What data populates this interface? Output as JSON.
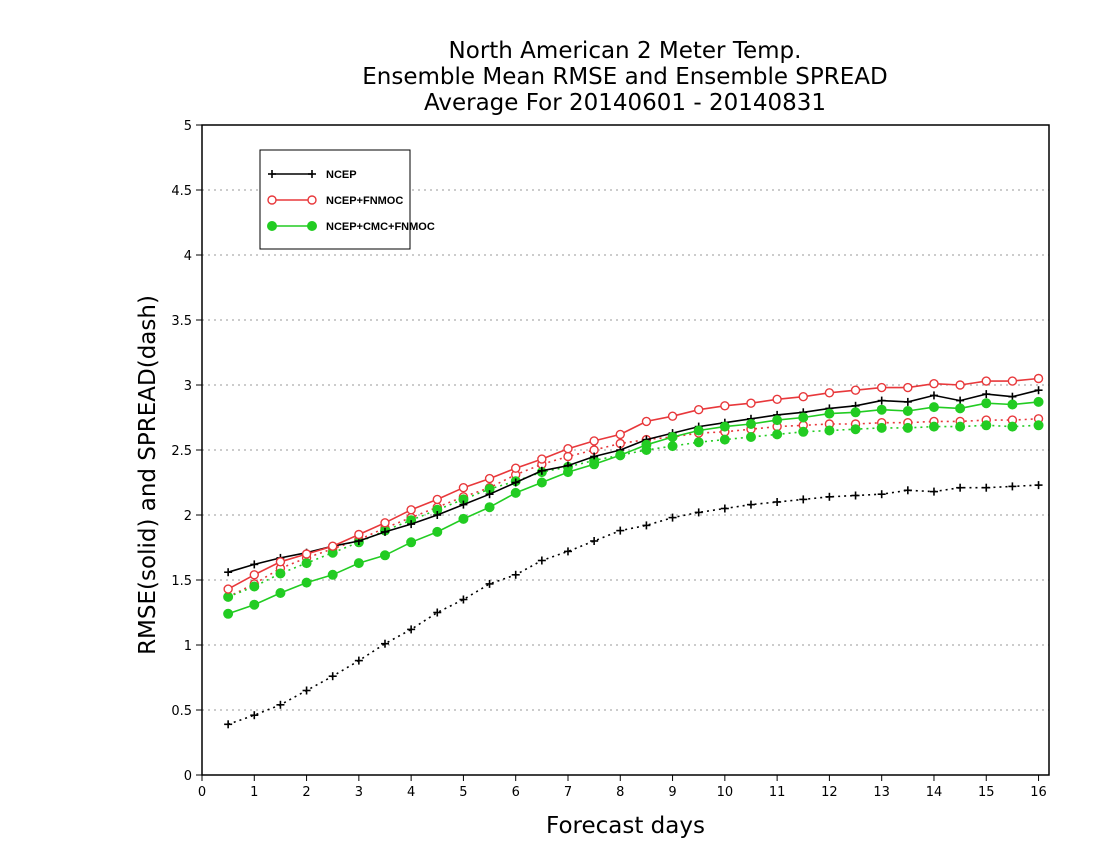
{
  "chart_data": {
    "type": "line",
    "title": [
      "North American 2 Meter Temp.",
      "Ensemble Mean RMSE and Ensemble SPREAD",
      "Average For 20140601 - 20140831"
    ],
    "xlabel": "Forecast days",
    "ylabel": "RMSE(solid) and SPREAD(dash)",
    "xlim": [
      0,
      16.2
    ],
    "ylim": [
      0,
      5
    ],
    "xticks": [
      0,
      1,
      2,
      3,
      4,
      5,
      6,
      7,
      8,
      9,
      10,
      11,
      12,
      13,
      14,
      15,
      16
    ],
    "yticks": [
      0,
      0.5,
      1,
      1.5,
      2,
      2.5,
      3,
      3.5,
      4,
      4.5,
      5
    ],
    "grid": "horizontal dotted",
    "legend_position": "top-left",
    "x": [
      0.5,
      1,
      1.5,
      2,
      2.5,
      3,
      3.5,
      4,
      4.5,
      5,
      5.5,
      6,
      6.5,
      7,
      7.5,
      8,
      8.5,
      9,
      9.5,
      10,
      10.5,
      11,
      11.5,
      12,
      12.5,
      13,
      13.5,
      14,
      14.5,
      15,
      15.5,
      16
    ],
    "series": [
      {
        "name": "NCEP",
        "style": "solid",
        "marker": "plus",
        "color": "#000000",
        "values": [
          1.56,
          1.62,
          1.67,
          1.71,
          1.76,
          1.8,
          1.87,
          1.93,
          2.0,
          2.08,
          2.16,
          2.25,
          2.34,
          2.38,
          2.45,
          2.5,
          2.58,
          2.63,
          2.68,
          2.71,
          2.74,
          2.77,
          2.79,
          2.82,
          2.84,
          2.88,
          2.87,
          2.92,
          2.88,
          2.93,
          2.91,
          2.96
        ]
      },
      {
        "name": "NCEP+FNMOC",
        "style": "solid",
        "marker": "open-circle",
        "color": "#e8383b",
        "values": [
          1.43,
          1.54,
          1.64,
          1.7,
          1.76,
          1.85,
          1.94,
          2.04,
          2.12,
          2.21,
          2.28,
          2.36,
          2.43,
          2.51,
          2.57,
          2.62,
          2.72,
          2.76,
          2.81,
          2.84,
          2.86,
          2.89,
          2.91,
          2.94,
          2.96,
          2.98,
          2.98,
          3.01,
          3.0,
          3.03,
          3.03,
          3.05
        ]
      },
      {
        "name": "NCEP+CMC+FNMOC",
        "style": "solid",
        "marker": "filled-circle",
        "color": "#22cc22",
        "values": [
          1.24,
          1.31,
          1.4,
          1.48,
          1.54,
          1.63,
          1.69,
          1.79,
          1.87,
          1.97,
          2.06,
          2.17,
          2.25,
          2.33,
          2.39,
          2.46,
          2.54,
          2.6,
          2.65,
          2.68,
          2.7,
          2.73,
          2.75,
          2.78,
          2.79,
          2.81,
          2.8,
          2.83,
          2.82,
          2.86,
          2.85,
          2.87
        ]
      },
      {
        "name": "NCEP",
        "style": "dash",
        "marker": "plus",
        "color": "#000000",
        "values": [
          0.39,
          0.46,
          0.54,
          0.65,
          0.76,
          0.88,
          1.01,
          1.12,
          1.25,
          1.35,
          1.47,
          1.54,
          1.65,
          1.72,
          1.8,
          1.88,
          1.92,
          1.98,
          2.02,
          2.05,
          2.08,
          2.1,
          2.12,
          2.14,
          2.15,
          2.16,
          2.19,
          2.18,
          2.21,
          2.21,
          2.22,
          2.23
        ]
      },
      {
        "name": "NCEP+FNMOC",
        "style": "dash",
        "marker": "open-circle",
        "color": "#e8383b",
        "values": [
          1.37,
          1.47,
          1.59,
          1.67,
          1.74,
          1.81,
          1.9,
          1.98,
          2.06,
          2.14,
          2.21,
          2.31,
          2.39,
          2.45,
          2.5,
          2.55,
          2.58,
          2.6,
          2.63,
          2.64,
          2.66,
          2.68,
          2.69,
          2.7,
          2.7,
          2.71,
          2.71,
          2.72,
          2.72,
          2.73,
          2.73,
          2.74
        ]
      },
      {
        "name": "NCEP+CMC+FNMOC",
        "style": "dash",
        "marker": "filled-circle",
        "color": "#22cc22",
        "values": [
          1.37,
          1.45,
          1.55,
          1.63,
          1.71,
          1.79,
          1.88,
          1.96,
          2.04,
          2.12,
          2.2,
          2.26,
          2.33,
          2.37,
          2.42,
          2.46,
          2.5,
          2.53,
          2.56,
          2.58,
          2.6,
          2.62,
          2.64,
          2.65,
          2.66,
          2.67,
          2.67,
          2.68,
          2.68,
          2.69,
          2.68,
          2.69
        ]
      }
    ]
  }
}
